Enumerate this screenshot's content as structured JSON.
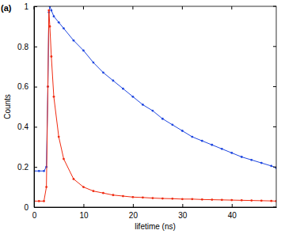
{
  "chart_data": {
    "type": "line",
    "annotation": "(a)",
    "x_label": "lifetime (ns)",
    "y_label": "Counts",
    "x": [
      0,
      1,
      2,
      2.5,
      2.8,
      3,
      3.2,
      3.5,
      4,
      5,
      6,
      8,
      10,
      12,
      14,
      16,
      18,
      20,
      22,
      24,
      26,
      28,
      30,
      32,
      34,
      36,
      38,
      40,
      42,
      44,
      46,
      48,
      49
    ],
    "series": [
      {
        "color": "#1f47e0",
        "marker": "dot",
        "line_style": "solid",
        "values": [
          0.18,
          0.18,
          0.18,
          0.2,
          0.6,
          0.97,
          1.0,
          0.98,
          0.95,
          0.92,
          0.89,
          0.83,
          0.78,
          0.72,
          0.67,
          0.63,
          0.59,
          0.55,
          0.51,
          0.48,
          0.44,
          0.41,
          0.38,
          0.35,
          0.33,
          0.31,
          0.29,
          0.27,
          0.25,
          0.235,
          0.22,
          0.205,
          0.195
        ]
      },
      {
        "color": "#f02a10",
        "marker": "dot",
        "line_style": "solid",
        "values": [
          0.03,
          0.03,
          0.03,
          0.1,
          0.6,
          0.98,
          0.9,
          0.75,
          0.55,
          0.35,
          0.24,
          0.14,
          0.1,
          0.08,
          0.07,
          0.06,
          0.055,
          0.05,
          0.048,
          0.045,
          0.043,
          0.042,
          0.04,
          0.04,
          0.038,
          0.037,
          0.036,
          0.035,
          0.034,
          0.033,
          0.032,
          0.031,
          0.03
        ]
      }
    ],
    "xlim": [
      0,
      49
    ],
    "xticks": [
      0,
      10,
      20,
      30,
      40
    ],
    "ylim": [
      0,
      1
    ],
    "yticks": [
      0,
      0.2,
      0.4,
      0.6,
      0.8,
      1
    ],
    "grid": false
  }
}
